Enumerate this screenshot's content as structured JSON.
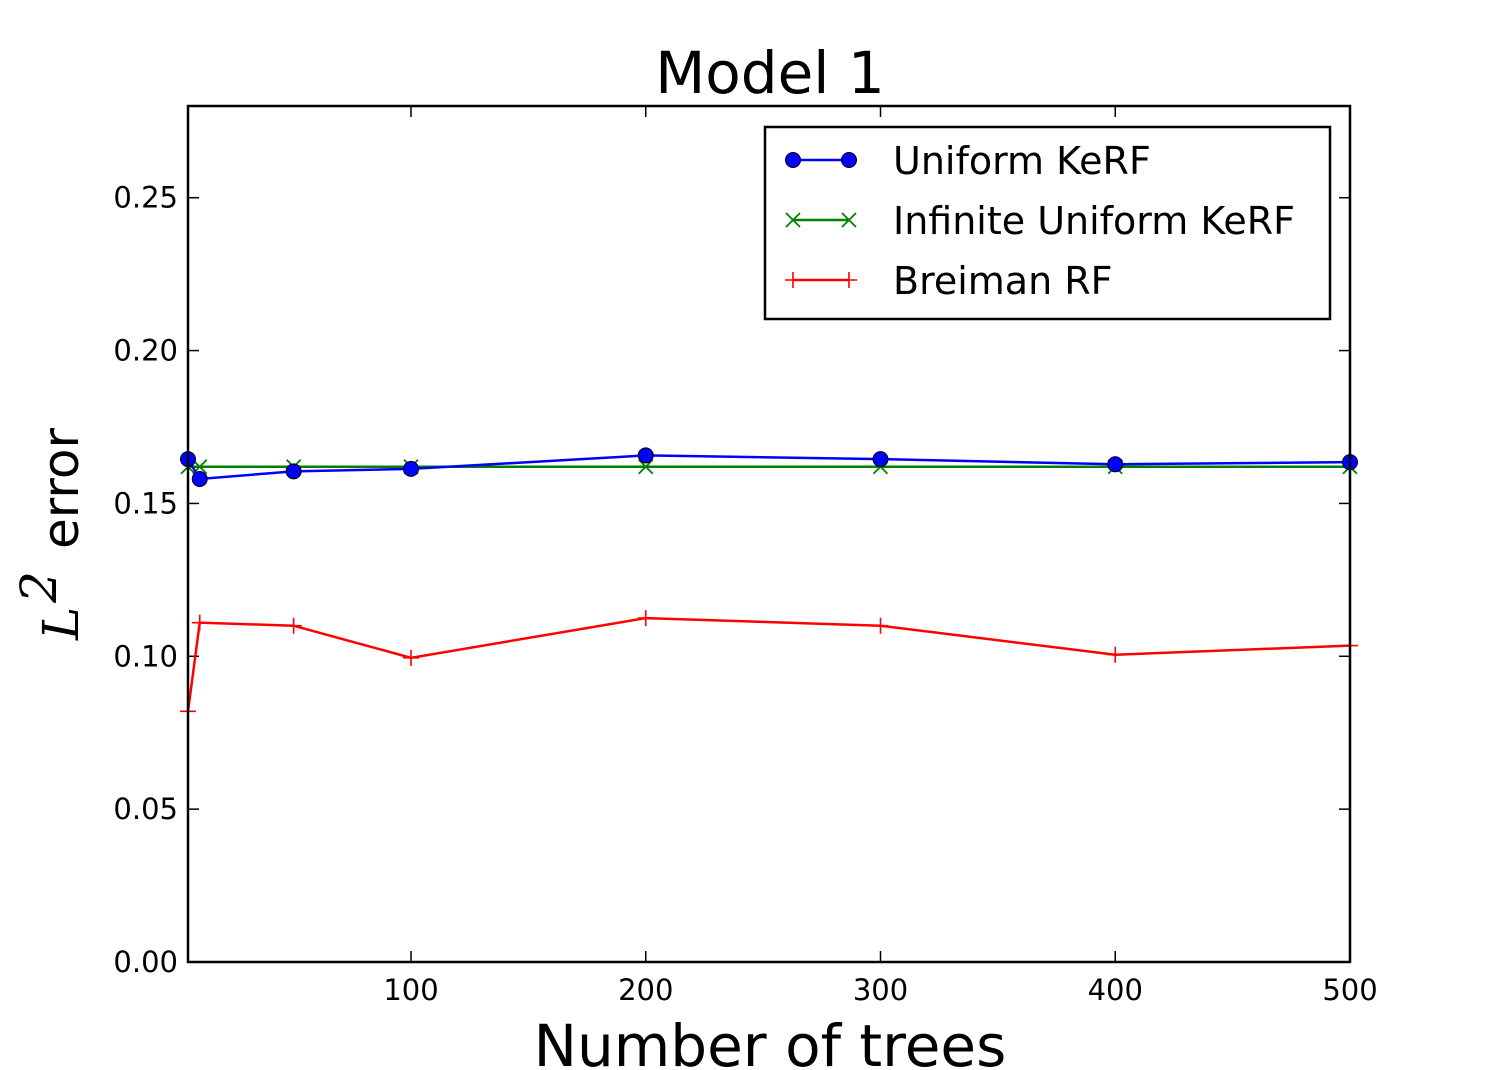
{
  "chart_data": {
    "type": "line",
    "title": "Model 1",
    "xlabel": "Number of trees",
    "ylabel_math": "L",
    "ylabel_sup": "2",
    "ylabel_text": "error",
    "xlim": [
      5,
      500
    ],
    "ylim": [
      0,
      0.28
    ],
    "xticks": [
      100,
      200,
      300,
      400,
      500
    ],
    "xtick_labels": [
      "100",
      "200",
      "300",
      "400",
      "500"
    ],
    "yticks": [
      0.0,
      0.05,
      0.1,
      0.15,
      0.2,
      0.25
    ],
    "ytick_labels": [
      "0.00",
      "0.05",
      "0.10",
      "0.15",
      "0.20",
      "0.25"
    ],
    "legend_position": "upper-right",
    "grid": false,
    "series": [
      {
        "name": "Uniform KeRF",
        "color": "#0000ff",
        "marker": "circle",
        "x": [
          5,
          10,
          50,
          100,
          200,
          300,
          400,
          500
        ],
        "y": [
          0.1645,
          0.158,
          0.1605,
          0.1613,
          0.1657,
          0.1645,
          0.1628,
          0.1635
        ]
      },
      {
        "name": "Infinite Uniform KeRF",
        "color": "#008000",
        "marker": "x",
        "x": [
          5,
          10,
          50,
          100,
          200,
          300,
          400,
          500
        ],
        "y": [
          0.162,
          0.162,
          0.162,
          0.162,
          0.162,
          0.162,
          0.162,
          0.162
        ]
      },
      {
        "name": "Breiman RF",
        "color": "#ff0000",
        "marker": "plus",
        "x": [
          5,
          10,
          50,
          100,
          200,
          300,
          400,
          500
        ],
        "y": [
          0.082,
          0.111,
          0.11,
          0.0995,
          0.1125,
          0.11,
          0.1005,
          0.1035
        ]
      }
    ]
  }
}
